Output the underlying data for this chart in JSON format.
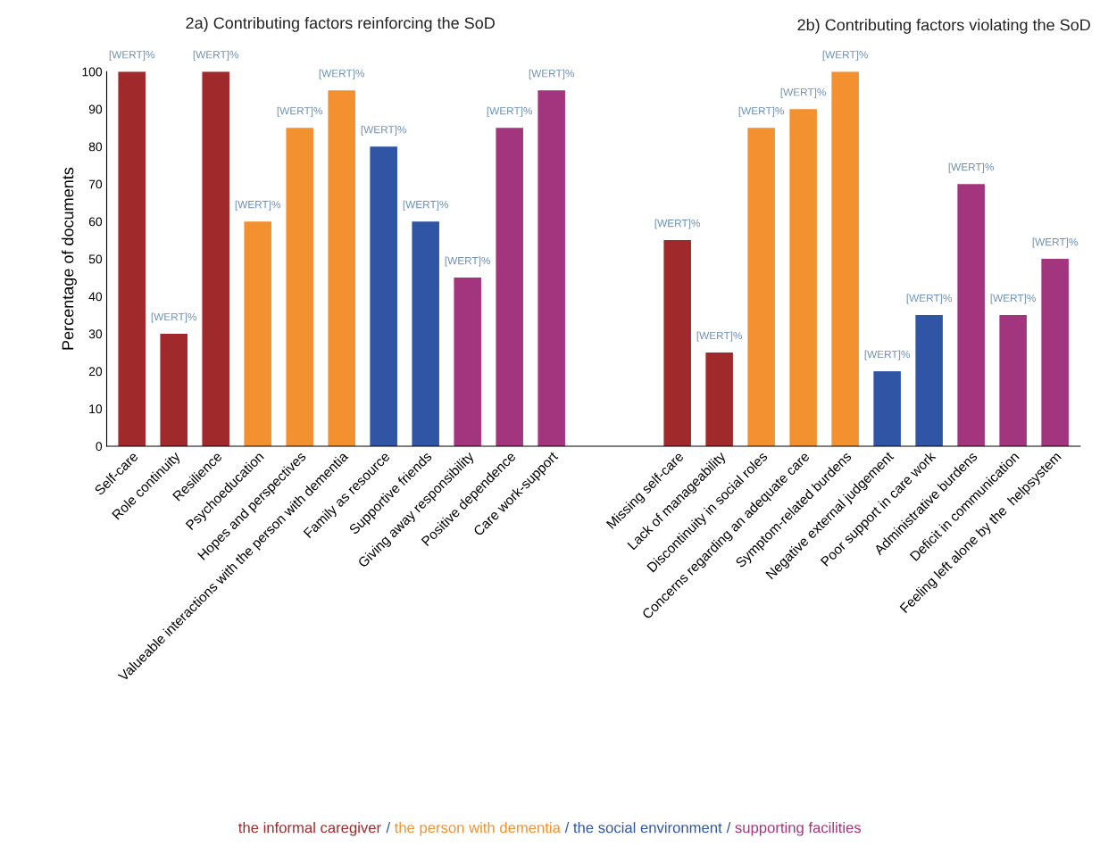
{
  "chart_data": {
    "type": "bar",
    "title": "2a) Contributing factors reinforcing the SoD",
    "annotations": [
      "2b) Contributing factors violating the SoD",
      "/",
      "/",
      "/"
    ],
    "ylabel": "Percentage of documents",
    "categories": [
      "Self-care",
      "Role continuity",
      "Resilience",
      "Psychoeducation",
      "Hopes and perspectives",
      "Valueable interactions with the person with dementia",
      "Family as resource",
      "Supportive friends",
      "Giving away responsibility",
      "Positive dependence",
      "Care work-support",
      null,
      null,
      "Missing self-care",
      "Lack of manageability",
      "Discontinuity in social roles",
      "Concerns regarding an adequate care",
      "Symptom-related burdens",
      "Negative external judgement",
      "Poor support in care work",
      "Administrative burdens",
      "Deficit in communication",
      "Feeling left alone by the  helpsystem"
    ],
    "series": [
      {
        "name": "the informal caregiver",
        "color": "#a0292b",
        "values": [
          100,
          30,
          100,
          null,
          null,
          null,
          null,
          null,
          null,
          null,
          null,
          null,
          null,
          55,
          25,
          null,
          null,
          null,
          null,
          null,
          null,
          null,
          null
        ],
        "value_labels": [
          "[WERT]%",
          "[WERT]%",
          "[WERT]%",
          null,
          null,
          null,
          null,
          null,
          null,
          null,
          null,
          null,
          null,
          "[WERT]%",
          "[WERT]%",
          null,
          null,
          null,
          null,
          null,
          null,
          null,
          null
        ]
      },
      {
        "name": "the person with dementia",
        "color": "#f39130",
        "values": [
          null,
          null,
          null,
          60,
          85,
          95,
          null,
          null,
          null,
          null,
          null,
          null,
          null,
          null,
          null,
          85,
          90,
          100,
          null,
          null,
          null,
          null,
          null
        ],
        "value_labels": [
          null,
          null,
          null,
          "[WERT]%",
          "[WERT]%",
          "[WERT]%",
          null,
          null,
          null,
          null,
          null,
          null,
          null,
          null,
          null,
          "[WERT]%",
          "[WERT]%",
          "[WERT]%",
          null,
          null,
          null,
          null,
          null
        ]
      },
      {
        "name": "the social environment",
        "color": "#2f55a4",
        "values": [
          null,
          null,
          null,
          null,
          null,
          null,
          80,
          60,
          null,
          null,
          null,
          null,
          null,
          null,
          null,
          null,
          null,
          null,
          20,
          35,
          null,
          null,
          null
        ],
        "value_labels": [
          null,
          null,
          null,
          null,
          null,
          null,
          "[WERT]%",
          "[WERT]%",
          null,
          null,
          null,
          null,
          null,
          null,
          null,
          null,
          null,
          null,
          "[WERT]%",
          "[WERT]%",
          null,
          null,
          null
        ]
      },
      {
        "name": "supporting facilities",
        "color": "#a3357f",
        "values": [
          null,
          null,
          null,
          null,
          null,
          null,
          null,
          null,
          45,
          85,
          95,
          null,
          null,
          null,
          null,
          null,
          null,
          null,
          null,
          null,
          70,
          35,
          50
        ],
        "value_labels": [
          null,
          null,
          null,
          null,
          null,
          null,
          null,
          null,
          "[WERT]%",
          "[WERT]%",
          "[WERT]%",
          null,
          null,
          null,
          null,
          null,
          null,
          null,
          null,
          null,
          "[WERT]%",
          "[WERT]%",
          "[WERT]%"
        ]
      }
    ],
    "ylim": [
      0,
      100
    ],
    "yticks": [
      0,
      10,
      20,
      30,
      40,
      50,
      60,
      70,
      80,
      90,
      100
    ],
    "grid": false,
    "legend": "bottom"
  }
}
